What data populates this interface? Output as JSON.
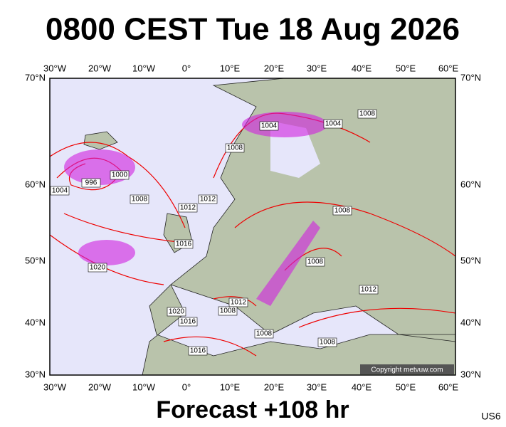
{
  "title": "0800 CEST Tue 18 Aug 2026",
  "footer": "Forecast +108 hr",
  "code": "US6",
  "copyright": "Copyright metvuw.com",
  "lon_labels": [
    "30°W",
    "20°W",
    "10°W",
    "0°",
    "10°E",
    "20°E",
    "30°E",
    "40°E",
    "50°E",
    "60°E"
  ],
  "lat_labels": [
    "70°N",
    "60°N",
    "50°N",
    "40°N",
    "30°N"
  ],
  "isobar_labels": [
    "1004",
    "1004",
    "1008",
    "1008",
    "1000",
    "996",
    "1004",
    "1008",
    "1012",
    "1012",
    "1016",
    "1020",
    "1008",
    "1008",
    "1012",
    "1012",
    "1008",
    "1020",
    "1016",
    "1008",
    "1008",
    "1016"
  ]
}
